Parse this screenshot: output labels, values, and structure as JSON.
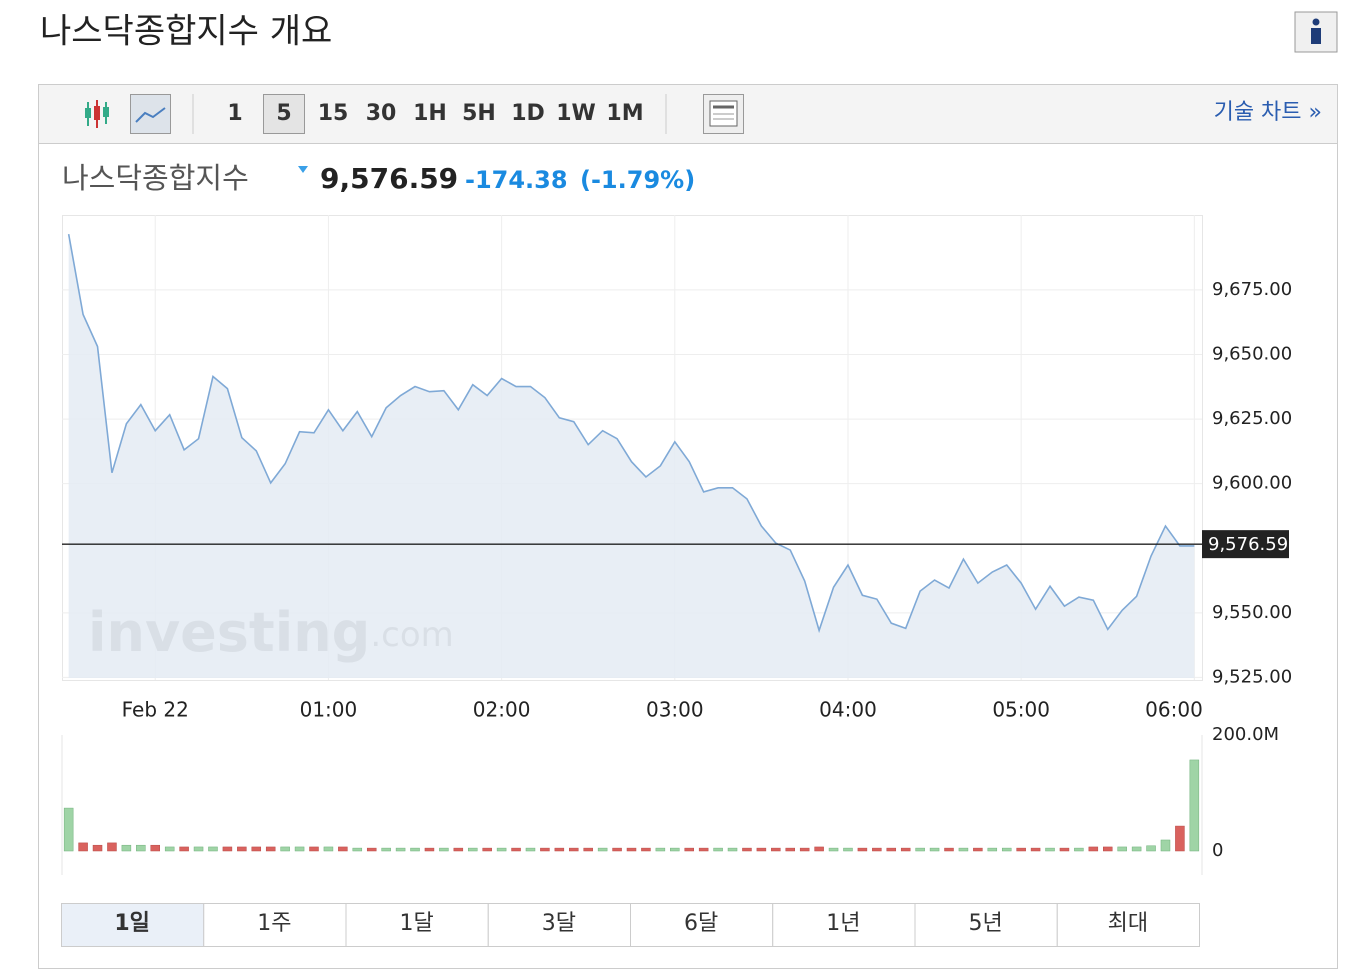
{
  "header": {
    "title": "나스닥종합지수 개요"
  },
  "toolbar": {
    "intervals": [
      "1",
      "5",
      "15",
      "30",
      "1H",
      "5H",
      "1D",
      "1W",
      "1M"
    ],
    "selected_interval": "5",
    "technical_link": "기술 차트 »"
  },
  "quote": {
    "name": "나스닥종합지수",
    "price": "9,576.59",
    "change": "-174.38",
    "change_pct": "(-1.79%)"
  },
  "chart_data": [
    {
      "type": "area",
      "color": "#7fa9d6",
      "fill": "#e4ebf3",
      "grid": true,
      "x": [
        -30,
        -25,
        -20,
        -15,
        -10,
        -5,
        0,
        5,
        10,
        15,
        20,
        25,
        30,
        35,
        40,
        45,
        50,
        55,
        60,
        65,
        70,
        75,
        80,
        85,
        90,
        95,
        100,
        105,
        110,
        115,
        120,
        125,
        130,
        135,
        140,
        145,
        150,
        155,
        160,
        165,
        170,
        175,
        180,
        185,
        190,
        195,
        200,
        205,
        210,
        215,
        220,
        225,
        230,
        235,
        240,
        245,
        250,
        255,
        260,
        265,
        270,
        275,
        280,
        285,
        290,
        295,
        300,
        305,
        310,
        315,
        320,
        325,
        330,
        335,
        340,
        345,
        350,
        355,
        360
      ],
      "values": [
        9696.6,
        9665.5,
        9653.1,
        9604.2,
        9623.2,
        9630.6,
        9620.5,
        9626.7,
        9613.1,
        9617.4,
        9641.5,
        9636.8,
        9617.8,
        9612.7,
        9600.3,
        9607.7,
        9620.1,
        9619.7,
        9628.6,
        9620.5,
        9627.9,
        9618.2,
        9629.4,
        9634.1,
        9637.6,
        9635.6,
        9636.0,
        9628.6,
        9638.3,
        9634.1,
        9640.7,
        9637.6,
        9637.6,
        9633.3,
        9625.5,
        9624.0,
        9615.1,
        9620.5,
        9617.4,
        9608.5,
        9602.6,
        9606.9,
        9616.2,
        9608.5,
        9596.8,
        9598.4,
        9598.4,
        9594.1,
        9583.6,
        9577.0,
        9574.3,
        9562.3,
        9543.2,
        9559.9,
        9568.5,
        9556.8,
        9555.3,
        9546.0,
        9544.0,
        9558.4,
        9562.7,
        9559.6,
        9570.8,
        9561.5,
        9565.8,
        9568.5,
        9561.5,
        9551.4,
        9560.3,
        9552.6,
        9556.1,
        9554.9,
        9543.6,
        9551.0,
        9556.4,
        9572.0,
        9583.6,
        9575.9,
        9575.9
      ],
      "xlim": [
        -33,
        363
      ],
      "ylim": [
        9524,
        9704
      ],
      "xticks": [
        {
          "value": 0,
          "label": "Feb 22"
        },
        {
          "value": 60,
          "label": "01:00"
        },
        {
          "value": 120,
          "label": "02:00"
        },
        {
          "value": 180,
          "label": "03:00"
        },
        {
          "value": 240,
          "label": "04:00"
        },
        {
          "value": 300,
          "label": "05:00"
        },
        {
          "value": 360,
          "label": "06:00"
        }
      ],
      "yticks": [
        {
          "value": 9525,
          "label": "9,525.00"
        },
        {
          "value": 9550,
          "label": "9,550.00"
        },
        {
          "value": 9600,
          "label": "9,600.00"
        },
        {
          "value": 9625,
          "label": "9,625.00"
        },
        {
          "value": 9650,
          "label": "9,650.00"
        },
        {
          "value": 9675,
          "label": "9,675.00"
        }
      ],
      "last": {
        "value": 9576.59,
        "label": "9,576.59"
      },
      "watermark": {
        "brand": "investing",
        "suffix": ".com"
      }
    },
    {
      "type": "bar",
      "up_color": "#9fd4a6",
      "down_color": "#d9625e",
      "x": [
        -30,
        -25,
        -20,
        -15,
        -10,
        -5,
        0,
        5,
        10,
        15,
        20,
        25,
        30,
        35,
        40,
        45,
        50,
        55,
        60,
        65,
        70,
        75,
        80,
        85,
        90,
        95,
        100,
        105,
        110,
        115,
        120,
        125,
        130,
        135,
        140,
        145,
        150,
        155,
        160,
        165,
        170,
        175,
        180,
        185,
        190,
        195,
        200,
        205,
        210,
        215,
        220,
        225,
        230,
        235,
        240,
        245,
        250,
        255,
        260,
        265,
        270,
        275,
        280,
        285,
        290,
        295,
        300,
        305,
        310,
        315,
        320,
        325,
        330,
        335,
        340,
        345,
        350,
        355,
        360
      ],
      "values": [
        74000000,
        14000000,
        10000000,
        14000000,
        10000000,
        10000000,
        10000000,
        7000000,
        7000000,
        7000000,
        7000000,
        7000000,
        7000000,
        7000000,
        7000000,
        7000000,
        7000000,
        7000000,
        7000000,
        7000000,
        5000000,
        5000000,
        5000000,
        5000000,
        5000000,
        5000000,
        5000000,
        5000000,
        5000000,
        5000000,
        5000000,
        5000000,
        5000000,
        5000000,
        5000000,
        5000000,
        5000000,
        5000000,
        5000000,
        5000000,
        5000000,
        5000000,
        5000000,
        5000000,
        5000000,
        5000000,
        5000000,
        5000000,
        5000000,
        5000000,
        5000000,
        5000000,
        7000000,
        5000000,
        5000000,
        5000000,
        5000000,
        5000000,
        5000000,
        5000000,
        5000000,
        5000000,
        5000000,
        5000000,
        5000000,
        5000000,
        5000000,
        5000000,
        5000000,
        5000000,
        5000000,
        7000000,
        7000000,
        7000000,
        7000000,
        9000000,
        19000000,
        43000000,
        157000000
      ],
      "ylim": [
        0,
        200000000
      ],
      "yticks": [
        0,
        {
          "value": 200000000,
          "label": "200.0M"
        }
      ]
    }
  ],
  "ranges": {
    "items": [
      "1일",
      "1주",
      "1달",
      "3달",
      "6달",
      "1년",
      "5년",
      "최대"
    ],
    "selected": "1일"
  }
}
